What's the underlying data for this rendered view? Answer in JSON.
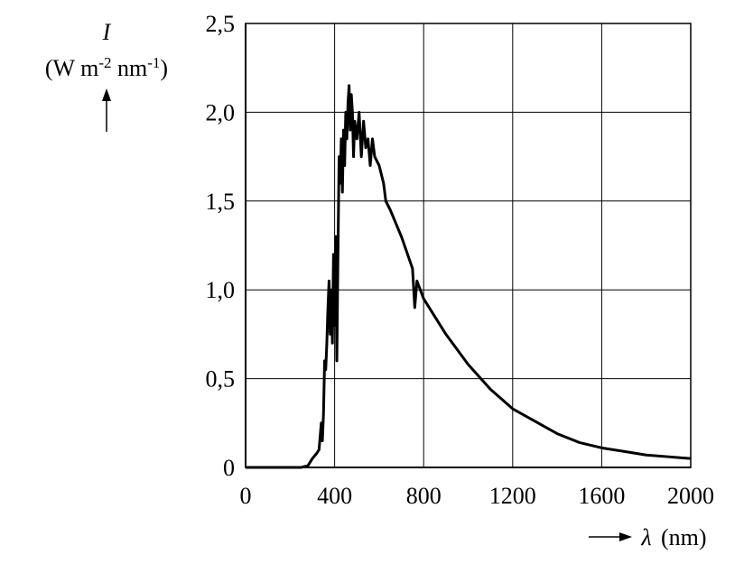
{
  "chart_data": {
    "type": "line",
    "y_label": "I",
    "y_unit": [
      {
        "text": "(W m"
      },
      {
        "text": "-2",
        "sup": true
      },
      {
        "text": " nm"
      },
      {
        "text": "-1",
        "sup": true
      },
      {
        "text": ")"
      }
    ],
    "x_label_symbol": "λ",
    "x_label_unit": "(nm)",
    "x": [
      0,
      100,
      200,
      250,
      280,
      300,
      320,
      330,
      340,
      345,
      350,
      355,
      360,
      365,
      370,
      375,
      380,
      385,
      390,
      395,
      400,
      405,
      410,
      415,
      420,
      425,
      430,
      435,
      440,
      445,
      450,
      455,
      460,
      465,
      470,
      475,
      480,
      485,
      490,
      500,
      510,
      520,
      530,
      540,
      550,
      560,
      570,
      580,
      600,
      620,
      630,
      650,
      700,
      750,
      760,
      770,
      800,
      900,
      1000,
      1100,
      1200,
      1300,
      1400,
      1500,
      1600,
      1700,
      1800,
      1900,
      2000
    ],
    "series": [
      {
        "color": "#000000",
        "values": [
          0,
          0,
          0,
          0,
          0.01,
          0.05,
          0.08,
          0.1,
          0.25,
          0.15,
          0.3,
          0.6,
          0.55,
          0.7,
          0.9,
          1.05,
          0.75,
          1.0,
          0.7,
          1.2,
          0.8,
          1.3,
          0.6,
          1.2,
          1.75,
          1.6,
          1.85,
          1.55,
          1.9,
          1.7,
          2.0,
          1.85,
          2.05,
          2.15,
          1.9,
          2.1,
          2.0,
          1.75,
          1.95,
          1.85,
          2.0,
          1.75,
          1.95,
          1.8,
          1.85,
          1.7,
          1.85,
          1.75,
          1.7,
          1.6,
          1.5,
          1.45,
          1.3,
          1.12,
          0.9,
          1.05,
          0.95,
          0.75,
          0.58,
          0.44,
          0.33,
          0.26,
          0.19,
          0.14,
          0.11,
          0.09,
          0.07,
          0.06,
          0.05
        ]
      }
    ],
    "xlim": [
      0,
      2000
    ],
    "xticks": [
      0,
      400,
      800,
      1200,
      1600,
      2000
    ],
    "ylim": [
      0,
      2.5
    ],
    "yticks": [
      0,
      {
        "value": 0.5,
        "label": "0,5"
      },
      {
        "value": 1.0,
        "label": "1,0"
      },
      {
        "value": 1.5,
        "label": "1,5"
      },
      {
        "value": 2.0,
        "label": "2,0"
      },
      {
        "value": 2.5,
        "label": "2,5"
      }
    ],
    "grid": true
  }
}
